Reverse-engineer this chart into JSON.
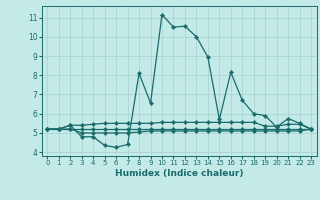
{
  "xlabel": "Humidex (Indice chaleur)",
  "ylabel": "",
  "bg_color": "#c4eae8",
  "grid_color": "#aad4d2",
  "line_color": "#1a6b6b",
  "xlim": [
    -0.5,
    23.5
  ],
  "ylim": [
    3.8,
    11.6
  ],
  "yticks": [
    4,
    5,
    6,
    7,
    8,
    9,
    10,
    11
  ],
  "xticks": [
    0,
    1,
    2,
    3,
    4,
    5,
    6,
    7,
    8,
    9,
    10,
    11,
    12,
    13,
    14,
    15,
    16,
    17,
    18,
    19,
    20,
    21,
    22,
    23
  ],
  "lines": [
    {
      "x": [
        0,
        1,
        2,
        3,
        4,
        5,
        6,
        7,
        8,
        9,
        10,
        11,
        12,
        13,
        14,
        15,
        16,
        17,
        18,
        19,
        20,
        21,
        22,
        23
      ],
      "y": [
        5.2,
        5.2,
        5.4,
        4.8,
        4.8,
        4.35,
        4.25,
        4.4,
        8.1,
        6.55,
        11.15,
        10.5,
        10.55,
        10.0,
        8.95,
        5.7,
        8.15,
        6.7,
        6.0,
        5.9,
        5.3,
        5.75,
        5.5,
        5.2
      ]
    },
    {
      "x": [
        0,
        1,
        2,
        3,
        4,
        5,
        6,
        7,
        8,
        9,
        10,
        11,
        12,
        13,
        14,
        15,
        16,
        17,
        18,
        19,
        20,
        21,
        22,
        23
      ],
      "y": [
        5.2,
        5.2,
        5.4,
        5.4,
        5.45,
        5.5,
        5.5,
        5.5,
        5.5,
        5.5,
        5.55,
        5.55,
        5.55,
        5.55,
        5.55,
        5.55,
        5.55,
        5.55,
        5.55,
        5.35,
        5.35,
        5.45,
        5.45,
        5.2
      ]
    },
    {
      "x": [
        0,
        1,
        2,
        3,
        4,
        5,
        6,
        7,
        8,
        9,
        10,
        11,
        12,
        13,
        14,
        15,
        16,
        17,
        18,
        19,
        20,
        21,
        22,
        23
      ],
      "y": [
        5.2,
        5.2,
        5.2,
        5.2,
        5.2,
        5.2,
        5.2,
        5.2,
        5.2,
        5.2,
        5.2,
        5.2,
        5.2,
        5.2,
        5.2,
        5.2,
        5.2,
        5.2,
        5.2,
        5.2,
        5.2,
        5.2,
        5.2,
        5.2
      ]
    },
    {
      "x": [
        0,
        1,
        2,
        3,
        4,
        5,
        6,
        7,
        8,
        9,
        10,
        11,
        12,
        13,
        14,
        15,
        16,
        17,
        18,
        19,
        20,
        21,
        22,
        23
      ],
      "y": [
        5.2,
        5.2,
        5.2,
        5.0,
        5.0,
        5.0,
        5.0,
        5.0,
        5.05,
        5.1,
        5.1,
        5.1,
        5.1,
        5.1,
        5.1,
        5.1,
        5.1,
        5.1,
        5.1,
        5.1,
        5.1,
        5.1,
        5.1,
        5.2
      ]
    }
  ]
}
